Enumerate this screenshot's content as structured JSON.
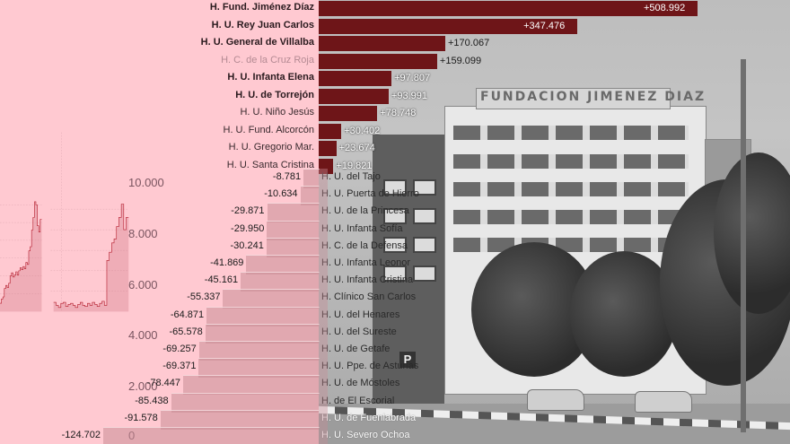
{
  "colors": {
    "background_pink": "#ffc9d1",
    "positive_bar": "#6e1518",
    "negative_bar": "#c88c96",
    "line": "#b31b2b",
    "tick_text": "#7a5560"
  },
  "photo": {
    "sign_text": "FUNDACION JIMENEZ DIAZ",
    "parking_sign": "P"
  },
  "chart_data": [
    {
      "type": "line",
      "title": "",
      "xlabel": "",
      "ylabel": "",
      "ylim": [
        0,
        11000
      ],
      "yticks": [
        "0",
        "2.000",
        "4.000",
        "6.000",
        "8.000",
        "10.000"
      ],
      "grid": true,
      "description": "Stepped line/area series (two panels) showing values rising from near 500-1000 to peaks above 10.000",
      "series": [
        {
          "name": "left panel",
          "values": [
            800,
            1200,
            1400,
            2200,
            2500,
            2300,
            2700,
            3400,
            3700,
            3300,
            3500,
            3800,
            3500,
            3900,
            4200,
            4000,
            4300,
            4100,
            4700,
            4500,
            5800,
            6200,
            7800,
            9000,
            10500,
            10200,
            8200,
            7600,
            8800
          ]
        },
        {
          "name": "right panel",
          "values": [
            900,
            600,
            400,
            800,
            900,
            500,
            700,
            800,
            600,
            400,
            700,
            900,
            600,
            500,
            800,
            600,
            900,
            700,
            500,
            800,
            1000,
            600,
            5000,
            5800,
            6700,
            7100,
            8300,
            9200,
            10500,
            8000,
            9200
          ]
        }
      ]
    },
    {
      "type": "bar",
      "orientation": "horizontal",
      "title": "",
      "positive": {
        "categories": [
          "H. Fund. Jiménez Díaz",
          "H. U. Rey Juan Carlos",
          "H. U. General de Villalba",
          "H. C. de la Cruz Roja",
          "H. U. Infanta Elena",
          "H. U. de Torrejón",
          "H. U. Niño Jesús",
          "H. U. Fund. Alcorcón",
          "H. U. Gregorio Mar.",
          "H. U. Santa Cristina"
        ],
        "values": [
          508992,
          347476,
          170067,
          159099,
          97807,
          93991,
          78748,
          30402,
          23674,
          19821
        ],
        "labels": [
          "+508.992",
          "+347.476",
          "+170.067",
          "+159.099",
          "+97.807",
          "+93.991",
          "+78.748",
          "+30.402",
          "+23.674",
          "+19.821"
        ]
      },
      "negative": {
        "categories": [
          "H. U. del Tajo",
          "H. U. Puerta de Hierro",
          "H. U. de la Princesa",
          "H. U. Infanta Sofía",
          "H. C. de la Defensa",
          "H. U. Infanta Leonor",
          "H. U. Infanta Cristina",
          "H. Clínico San Carlos",
          "H. U. del Henares",
          "H. U. del Sureste",
          "H. U. de Getafe",
          "H. U. Ppe. de Asturias",
          "H. U. de Móstoles",
          "H. de El Escorial",
          "H. U. de Fuenlabrada",
          "H. U. Severo Ochoa"
        ],
        "values": [
          -8781,
          -10634,
          -29871,
          -29950,
          -30241,
          -41869,
          -45161,
          -55337,
          -64871,
          -65578,
          -69257,
          -69371,
          -78447,
          -85438,
          -91578,
          -124702
        ],
        "labels": [
          "-8.781",
          "-10.634",
          "-29.871",
          "-29.950",
          "-30.241",
          "-41.869",
          "-45.161",
          "-55.337",
          "-64.871",
          "-65.578",
          "-69.257",
          "-69.371",
          "-78.447",
          "-85.438",
          "-91.578",
          "-124.702"
        ]
      }
    }
  ]
}
